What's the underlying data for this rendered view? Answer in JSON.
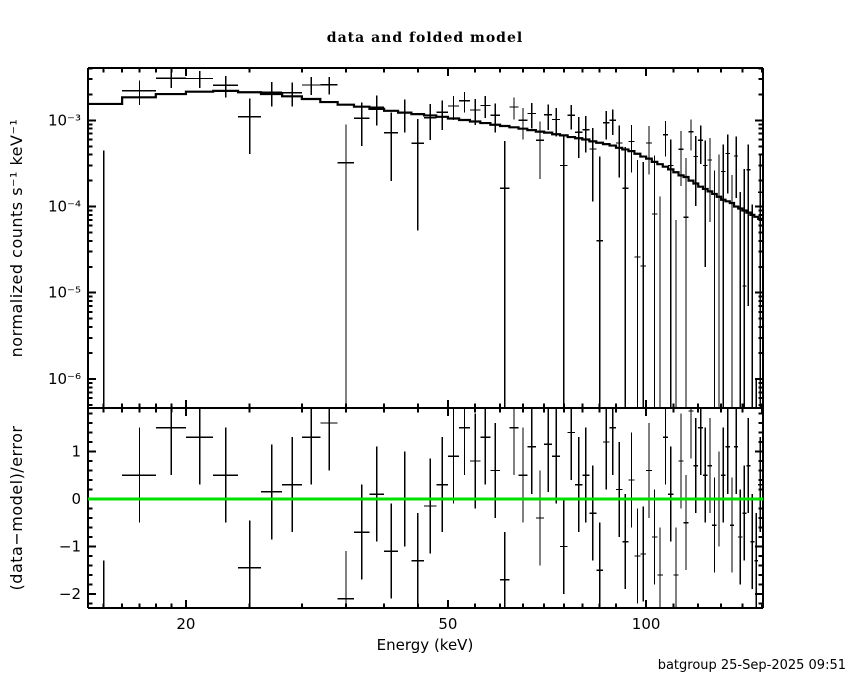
{
  "title": "data and folded model",
  "footer": "batgroup 25-Sep-2025 09:51",
  "colors": {
    "foreground": "#000000",
    "background": "#ffffff",
    "zero_line": "#00e000"
  },
  "chart_data": {
    "type": "scatter",
    "title": "data and folded model",
    "xlabel": "Energy (keV)",
    "ylabel_top": "normalized counts s⁻¹ keV⁻¹",
    "ylabel_bottom": "(data−model)/error",
    "x_scale": "log",
    "x_range": [
      14.2,
      150.5
    ],
    "top_y_scale": "log",
    "top_y_range": [
      4.6e-07,
      0.00405
    ],
    "bottom_y_range": [
      -2.295,
      1.915
    ],
    "grid": false,
    "legend": "none",
    "x_major_ticks": [
      20,
      50,
      100
    ],
    "x_major_labels": [
      "20",
      "50",
      "100"
    ],
    "x_minor_ticks": [
      15,
      16,
      17,
      18,
      19,
      25,
      30,
      35,
      40,
      45,
      55,
      60,
      65,
      70,
      75,
      80,
      85,
      90,
      110,
      120,
      130,
      140,
      150
    ],
    "top_y_major_ticks": [
      0.001,
      0.0001,
      1e-05,
      1e-06
    ],
    "top_y_major_labels": [
      "10⁻³",
      "10⁻⁴",
      "10⁻⁵",
      "10⁻⁶"
    ],
    "bottom_y_major_ticks": [
      1,
      0,
      -1,
      -2
    ],
    "bottom_y_major_labels": [
      "1",
      "0",
      "−1",
      "−2"
    ],
    "bottom_y_minor_step": 0.2,
    "bottom_error_bar": 1.0,
    "series": [
      {
        "name": "data",
        "style": "crosses-with-error-bars",
        "color": "#000000"
      },
      {
        "name": "folded model",
        "style": "step-histogram",
        "color": "#000000"
      },
      {
        "name": "(data-model)/error",
        "style": "crosses-with-error-bars",
        "color": "#000000"
      },
      {
        "name": "zero line",
        "style": "horizontal-line",
        "color": "#00e000",
        "value": 0
      }
    ],
    "bins": {
      "e_min_kev": 14,
      "e_max_kev": 150,
      "bin_width_kev": 2,
      "model": [
        0.00155,
        0.00185,
        0.00202,
        0.00215,
        0.0022,
        0.00212,
        0.00202,
        0.0019,
        0.00177,
        0.00163,
        0.00152,
        0.00144,
        0.00136,
        0.00129,
        0.00123,
        0.00118,
        0.00114,
        0.0011,
        0.00105,
        0.00101,
        0.00097,
        0.00093,
        0.00089,
        0.00086,
        0.00083,
        0.0008,
        0.00077,
        0.00074,
        0.00072,
        0.00069,
        0.00067,
        0.00064,
        0.00062,
        0.0006,
        0.00057,
        0.00055,
        0.00053,
        0.00051,
        0.00048,
        0.00046,
        0.00044,
        0.00041,
        0.00038,
        0.00036,
        0.00033,
        0.00031,
        0.00029,
        0.00027,
        0.00025,
        0.00023,
        0.00022,
        0.0002,
        0.000185,
        0.00017,
        0.00016,
        0.00015,
        0.00014,
        0.00013,
        0.00012,
        0.000115,
        0.00011,
        0.0001,
        9.5e-05,
        9e-05,
        8.5e-05,
        8e-05,
        7.6e-05,
        7.2e-05
      ],
      "sigma": [
        0.00085,
        0.0007,
        0.0007,
        0.0007,
        0.0007,
        0.0007,
        0.00067,
        0.00064,
        0.00062,
        0.0006,
        0.00057,
        0.00055,
        0.00054,
        0.00052,
        0.00051,
        0.00049,
        0.00048,
        0.00047,
        0.00046,
        0.00045,
        0.00044,
        0.00043,
        0.00042,
        0.00041,
        0.0004,
        0.0004,
        0.00039,
        0.00038,
        0.00038,
        0.00037,
        0.00037,
        0.00036,
        0.00036,
        0.00035,
        0.00035,
        0.00034,
        0.00034,
        0.00033,
        0.00033,
        0.00033,
        0.00032,
        0.00032,
        0.00031,
        0.00031,
        0.00031,
        0.0003,
        0.0003,
        0.0003,
        0.0003,
        0.00029,
        0.00029,
        0.00029,
        0.00028,
        0.00028,
        0.00028,
        0.00028,
        0.00027,
        0.00027,
        0.00027,
        0.00027,
        0.00027,
        0.00026,
        0.00026,
        0.00026,
        0.00026,
        0.00026,
        0.00025,
        0.00025
      ],
      "residual": [
        -2.3,
        0.5,
        1.5,
        1.3,
        0.5,
        -1.45,
        0.15,
        0.3,
        1.3,
        1.6,
        -2.1,
        -0.7,
        0.1,
        -1.1,
        0.0,
        -1.3,
        -0.15,
        0.3,
        0.9,
        1.5,
        0.8,
        1.3,
        0.6,
        -1.7,
        1.5,
        0.5,
        1.1,
        -0.4,
        1.15,
        0.9,
        -1.0,
        1.4,
        0.3,
        0.5,
        -0.3,
        -1.5,
        1.2,
        1.5,
        0.2,
        -0.9,
        0.4,
        -1.2,
        -1.16,
        0.6,
        -0.8,
        -1.6,
        1.3,
        0.1,
        -1.6,
        0.8,
        -0.5,
        1.85,
        0.7,
        1.5,
        0.5,
        0.7,
        -0.55,
        0.0,
        0.5,
        1.1,
        -0.55,
        1.1,
        -0.8,
        -0.3,
        0.7,
        -0.9,
        -1.3,
        0.3
      ]
    }
  }
}
